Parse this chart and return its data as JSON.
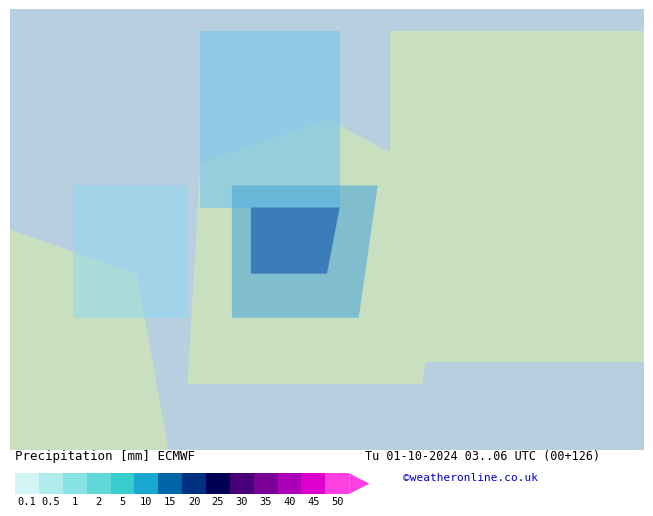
{
  "title_left": "Precipitation [mm] ECMWF",
  "title_right": "Tu 01-10-2024 03..06 UTC (00+126)",
  "credit": "©weatheronline.co.uk",
  "colorbar_values": [
    "0.1",
    "0.5",
    "1",
    "2",
    "5",
    "10",
    "15",
    "20",
    "25",
    "30",
    "35",
    "40",
    "45",
    "50"
  ],
  "colorbar_colors": [
    "#d4f5f5",
    "#b0ecec",
    "#88e4e4",
    "#60d8d8",
    "#38cccc",
    "#18a8d0",
    "#0065a8",
    "#003080",
    "#000055",
    "#480078",
    "#7a0098",
    "#aa00b8",
    "#dd00cc",
    "#ff40e0"
  ],
  "arrow_color": "#ff40e0",
  "bg_color": "#ffffff",
  "label_color": "#000000",
  "title_fontsize": 9,
  "tick_fontsize": 7.5,
  "credit_color": "#0000cc"
}
